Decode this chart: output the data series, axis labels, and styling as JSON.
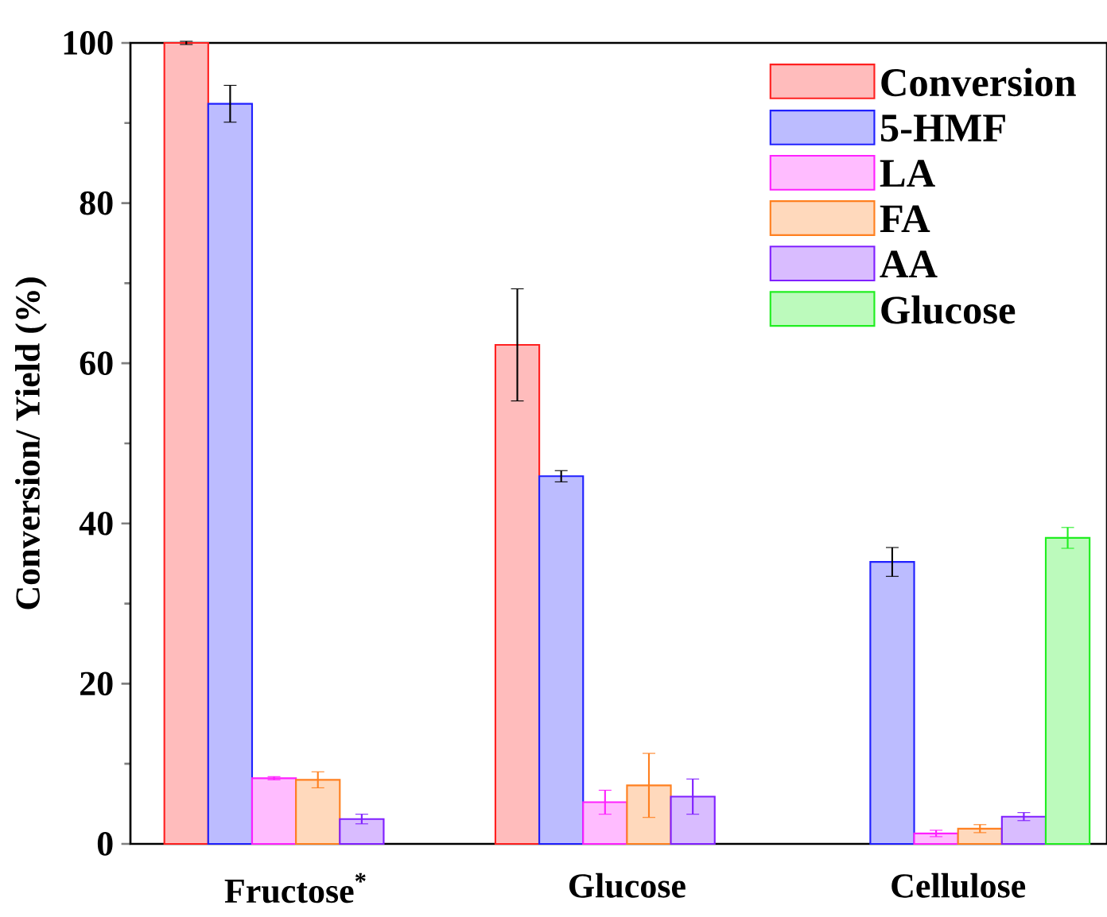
{
  "chart_data": {
    "type": "bar",
    "ylabel": "Conversion/ Yield (%)",
    "categories": [
      "Fructose$^{*}$",
      "Glucose",
      "Cellulose"
    ],
    "ylim": [
      0,
      100
    ],
    "yticks": [
      0,
      20,
      40,
      60,
      80,
      100
    ],
    "grid": false,
    "legend": "top right",
    "series": [
      {
        "name": "Conversion",
        "color": "#ff2020",
        "values": [
          100,
          62.3,
          null
        ],
        "errors": [
          0.2,
          7,
          null
        ]
      },
      {
        "name": "5-HMF",
        "color": "#2020ff",
        "values": [
          92.4,
          45.9,
          35.2
        ],
        "errors": [
          2.3,
          0.7,
          1.8
        ]
      },
      {
        "name": "LA",
        "color": "#ff20ff",
        "values": [
          8.2,
          5.2,
          1.3
        ],
        "errors": [
          0.2,
          1.5,
          0.4
        ]
      },
      {
        "name": "FA",
        "color": "#ff8020",
        "values": [
          8.0,
          7.3,
          1.9
        ],
        "errors": [
          1,
          4,
          0.5
        ]
      },
      {
        "name": "AA",
        "color": "#8020ff",
        "values": [
          3.1,
          5.9,
          3.4
        ],
        "errors": [
          0.6,
          2.2,
          0.5
        ]
      },
      {
        "name": "Glucose",
        "color": "#20ee20",
        "values": [
          null,
          null,
          38.2
        ],
        "errors": [
          null,
          null,
          1.3
        ]
      }
    ]
  }
}
